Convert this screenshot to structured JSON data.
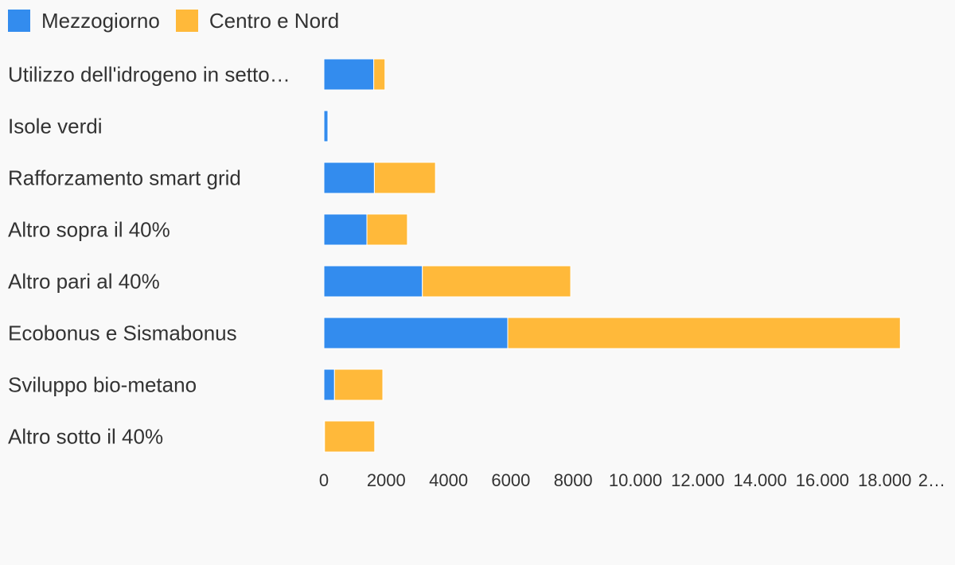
{
  "chart_data": {
    "type": "bar",
    "orientation": "horizontal",
    "stacked": true,
    "categories": [
      "Utilizzo dell'idrogeno in setto…",
      "Isole verdi",
      "Rafforzamento smart grid",
      "Altro sopra il 40%",
      "Altro pari al 40%",
      "Ecobonus e Sismabonus",
      "Sviluppo bio-metano",
      "Altro sotto il 40%"
    ],
    "series": [
      {
        "name": "Mezzogiorno",
        "color": "#338cee",
        "values": [
          1600,
          130,
          1620,
          1380,
          3160,
          5900,
          340,
          20
        ]
      },
      {
        "name": "Centro e Nord",
        "color": "#ffb93a",
        "values": [
          360,
          20,
          1960,
          1300,
          4760,
          12600,
          1550,
          1610
        ]
      }
    ],
    "xlim": [
      0,
      20000
    ],
    "x_ticks": [
      "0",
      "2000",
      "4000",
      "6000",
      "8000",
      "10.000",
      "12.000",
      "14.000",
      "16.000",
      "18.000",
      "2…"
    ],
    "grid": false,
    "legend_position": "top-left"
  }
}
